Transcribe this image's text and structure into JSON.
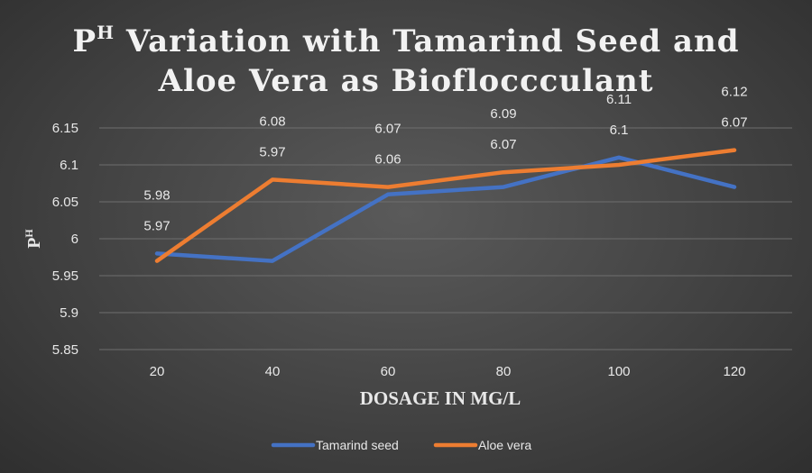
{
  "chart_data": {
    "type": "line",
    "title_line1_main": "P",
    "title_line1_sup": "H",
    "title_line1_rest": " Variation with Tamarind Seed and",
    "title_line2": "Aloe Vera as Biofloccculant",
    "xlabel": "DOSAGE IN MG/L",
    "ylabel_main": "P",
    "ylabel_sup": "H",
    "categories": [
      "20",
      "40",
      "60",
      "80",
      "100",
      "120"
    ],
    "ylim": [
      5.85,
      6.15
    ],
    "yticks": [
      "5.85",
      "5.9",
      "5.95",
      "6",
      "6.05",
      "6.1",
      "6.15"
    ],
    "ytick_values": [
      5.85,
      5.9,
      5.95,
      6.0,
      6.05,
      6.1,
      6.15
    ],
    "grid": true,
    "legend_position": "bottom",
    "series": [
      {
        "name": "Tamarind seed",
        "color": "#4472c4",
        "values": [
          5.98,
          5.97,
          6.06,
          6.07,
          6.11,
          6.07
        ],
        "labels": [
          "5.98",
          "5.97",
          "6.06",
          "6.07",
          "6.11",
          "6.07"
        ]
      },
      {
        "name": "Aloe vera",
        "color": "#ed7d31",
        "values": [
          5.97,
          6.08,
          6.07,
          6.09,
          6.1,
          6.12
        ],
        "labels": [
          "5.97",
          "6.08",
          "6.07",
          "6.09",
          "6.1",
          "6.12"
        ]
      }
    ]
  }
}
